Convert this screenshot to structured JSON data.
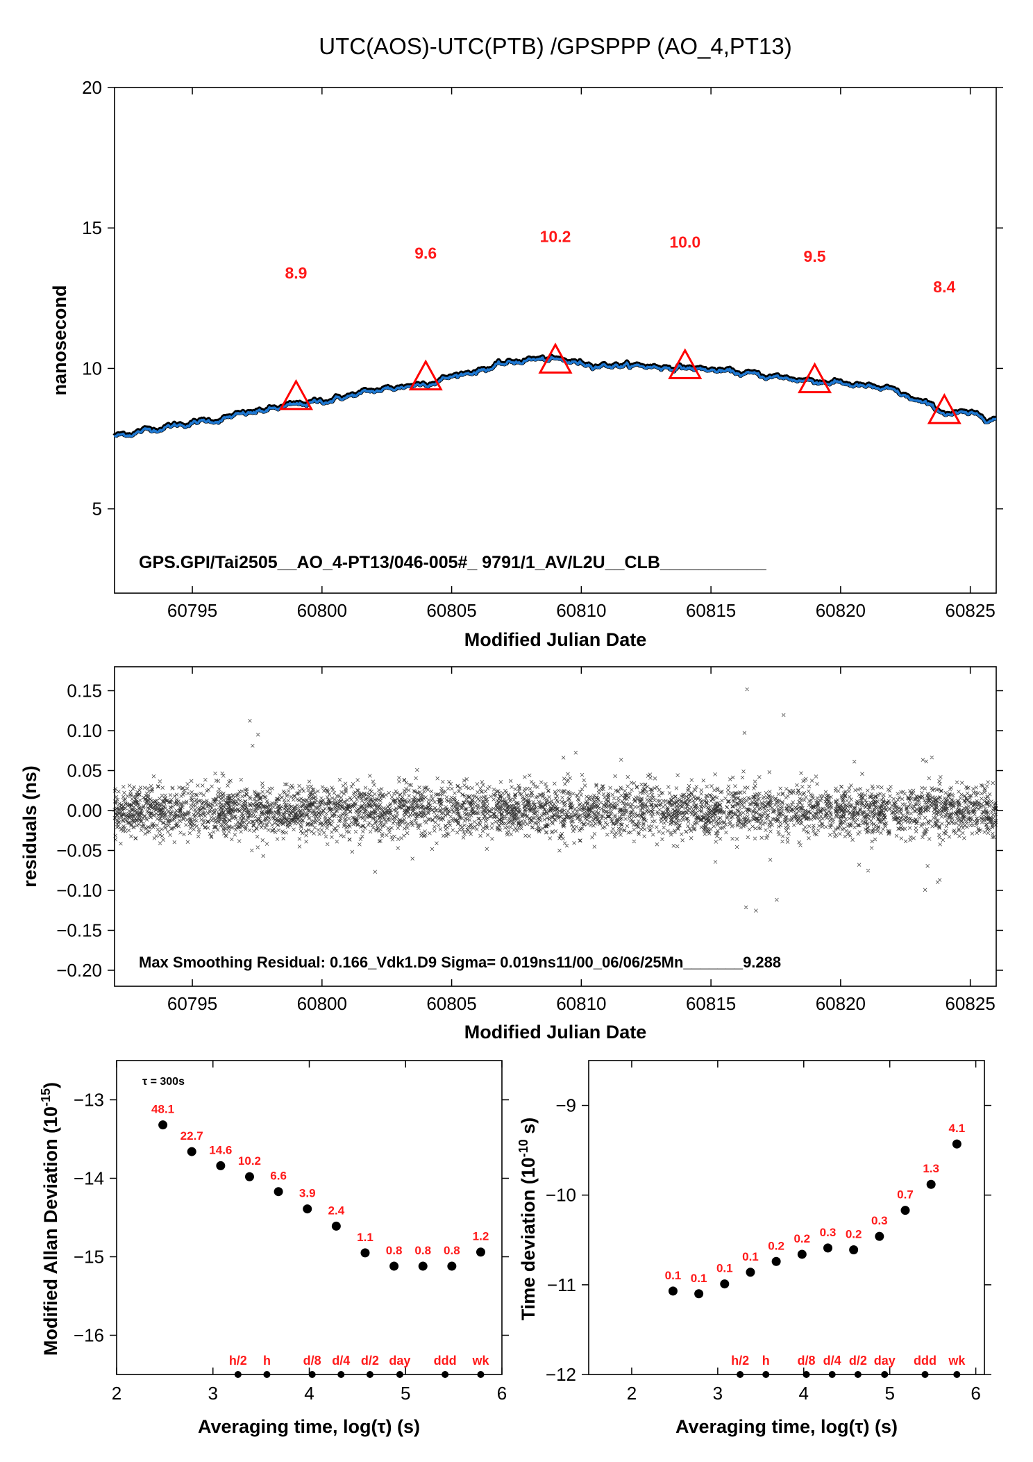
{
  "chart_data": [
    {
      "type": "line",
      "title": "UTC(AOS)-UTC(PTB)  /GPSPPP  (AO_4,PT13)",
      "xlabel": "Modified Julian Date",
      "ylabel": "nanosecond",
      "xlim": [
        60792,
        60826
      ],
      "ylim": [
        2,
        20
      ],
      "xticks": [
        60795,
        60800,
        60805,
        60810,
        60815,
        60820,
        60825
      ],
      "yticks": [
        5,
        10,
        15,
        20
      ],
      "series": [
        {
          "x": [
            60792,
            60794,
            60796,
            60798,
            60800,
            60802,
            60804,
            60806,
            60808,
            60809,
            60810,
            60812,
            60814,
            60816,
            60818,
            60820,
            60822,
            60824,
            60826
          ],
          "y": [
            7.6,
            7.95,
            8.2,
            8.55,
            8.85,
            9.2,
            9.5,
            9.95,
            10.35,
            10.3,
            10.2,
            10.1,
            10.05,
            9.85,
            9.65,
            9.5,
            9.2,
            8.45,
            8.25
          ]
        }
      ],
      "markers": [
        {
          "x": 60799,
          "y": 8.9,
          "label": "8.9"
        },
        {
          "x": 60804,
          "y": 9.6,
          "label": "9.6"
        },
        {
          "x": 60809,
          "y": 10.2,
          "label": "10.2"
        },
        {
          "x": 60814,
          "y": 10.0,
          "label": "10.0"
        },
        {
          "x": 60819,
          "y": 9.5,
          "label": "9.5"
        },
        {
          "x": 60824,
          "y": 8.4,
          "label": "8.4"
        }
      ],
      "annotation": "GPS.GPI/Tai2505__AO_4-PT13/046-005#_  9791/1_AV/L2U__CLB___________",
      "colors": {
        "line": "#1f78d1",
        "envelope": "#000000",
        "marker": "#ff0000"
      }
    },
    {
      "type": "scatter",
      "xlabel": "Modified Julian Date",
      "ylabel": "residuals (ns)",
      "xlim": [
        60792,
        60826
      ],
      "ylim": [
        -0.22,
        0.18
      ],
      "xticks": [
        60795,
        60800,
        60805,
        60810,
        60815,
        60820,
        60825
      ],
      "yticks": [
        -0.2,
        -0.15,
        -0.1,
        -0.05,
        0.0,
        0.05,
        0.1,
        0.15
      ],
      "ytick_labels": [
        "−0.20",
        "−0.15",
        "−0.10",
        "−0.05",
        "0.00",
        "0.05",
        "0.10",
        "0.15"
      ],
      "bursts": [
        {
          "x": 60797.5,
          "amp": 0.12
        },
        {
          "x": 60809.5,
          "amp": 0.1
        },
        {
          "x": 60811.5,
          "amp": 0.08
        },
        {
          "x": 60816.5,
          "amp": 0.16
        },
        {
          "x": 60817.5,
          "amp": 0.13
        },
        {
          "x": 60821,
          "amp": 0.08
        },
        {
          "x": 60823.5,
          "amp": 0.1
        }
      ],
      "annotation": "Max Smoothing Residual: 0.166_Vdk1.D9  Sigma= 0.019ns11/00_06/06/25Mn_______9.288"
    },
    {
      "type": "scatter",
      "xlabel": "Averaging time, log(τ) (s)",
      "ylabel": "Modified Allan Deviation (10",
      "ylabel_sup": "-15",
      "ylabel_end": ")",
      "xlim": [
        2,
        6
      ],
      "ylim": [
        -16.5,
        -12.5
      ],
      "xticks": [
        2,
        3,
        4,
        5,
        6
      ],
      "yticks": [
        -16,
        -15,
        -14,
        -13
      ],
      "ytick_labels": [
        "−16",
        "−15",
        "−14",
        "−13"
      ],
      "tau_note": "τ = 300s",
      "points": [
        {
          "x": 2.48,
          "y": -13.32,
          "label": "48.1"
        },
        {
          "x": 2.78,
          "y": -13.66,
          "label": "22.7"
        },
        {
          "x": 3.08,
          "y": -13.84,
          "label": "14.6"
        },
        {
          "x": 3.38,
          "y": -13.98,
          "label": "10.2"
        },
        {
          "x": 3.68,
          "y": -14.17,
          "label": "6.6"
        },
        {
          "x": 3.98,
          "y": -14.39,
          "label": "3.9"
        },
        {
          "x": 4.28,
          "y": -14.61,
          "label": "2.4"
        },
        {
          "x": 4.58,
          "y": -14.95,
          "label": "1.1"
        },
        {
          "x": 4.88,
          "y": -15.12,
          "label": "0.8"
        },
        {
          "x": 5.18,
          "y": -15.12,
          "label": "0.8"
        },
        {
          "x": 5.48,
          "y": -15.12,
          "label": "0.8"
        },
        {
          "x": 5.78,
          "y": -14.94,
          "label": "1.2"
        }
      ],
      "period_marks": [
        {
          "x": 3.26,
          "label": "h/2"
        },
        {
          "x": 3.56,
          "label": "h"
        },
        {
          "x": 4.03,
          "label": "d/8"
        },
        {
          "x": 4.33,
          "label": "d/4"
        },
        {
          "x": 4.63,
          "label": "d/2"
        },
        {
          "x": 4.94,
          "label": "day"
        },
        {
          "x": 5.41,
          "label": "ddd"
        },
        {
          "x": 5.78,
          "label": "wk"
        }
      ]
    },
    {
      "type": "scatter",
      "xlabel": "Averaging time, log(τ) (s)",
      "ylabel": "Time deviation (10",
      "ylabel_sup": "-10",
      "ylabel_end": " s)",
      "xlim": [
        1.5,
        6.1
      ],
      "ylim": [
        -12,
        -8.5
      ],
      "xticks": [
        2,
        3,
        4,
        5,
        6
      ],
      "yticks": [
        -12,
        -11,
        -10,
        -9
      ],
      "ytick_labels": [
        "−12",
        "−11",
        "−10",
        "−9"
      ],
      "points": [
        {
          "x": 2.48,
          "y": -11.07,
          "label": "0.1"
        },
        {
          "x": 2.78,
          "y": -11.1,
          "label": "0.1"
        },
        {
          "x": 3.08,
          "y": -10.99,
          "label": "0.1"
        },
        {
          "x": 3.38,
          "y": -10.86,
          "label": "0.1"
        },
        {
          "x": 3.68,
          "y": -10.74,
          "label": "0.2"
        },
        {
          "x": 3.98,
          "y": -10.66,
          "label": "0.2"
        },
        {
          "x": 4.28,
          "y": -10.59,
          "label": "0.3"
        },
        {
          "x": 4.58,
          "y": -10.61,
          "label": "0.2"
        },
        {
          "x": 4.88,
          "y": -10.46,
          "label": "0.3"
        },
        {
          "x": 5.18,
          "y": -10.17,
          "label": "0.7"
        },
        {
          "x": 5.48,
          "y": -9.88,
          "label": "1.3"
        },
        {
          "x": 5.78,
          "y": -9.43,
          "label": "4.1"
        }
      ],
      "period_marks": [
        {
          "x": 3.26,
          "label": "h/2"
        },
        {
          "x": 3.56,
          "label": "h"
        },
        {
          "x": 4.03,
          "label": "d/8"
        },
        {
          "x": 4.33,
          "label": "d/4"
        },
        {
          "x": 4.63,
          "label": "d/2"
        },
        {
          "x": 4.94,
          "label": "day"
        },
        {
          "x": 5.41,
          "label": "ddd"
        },
        {
          "x": 5.78,
          "label": "wk"
        }
      ]
    }
  ]
}
